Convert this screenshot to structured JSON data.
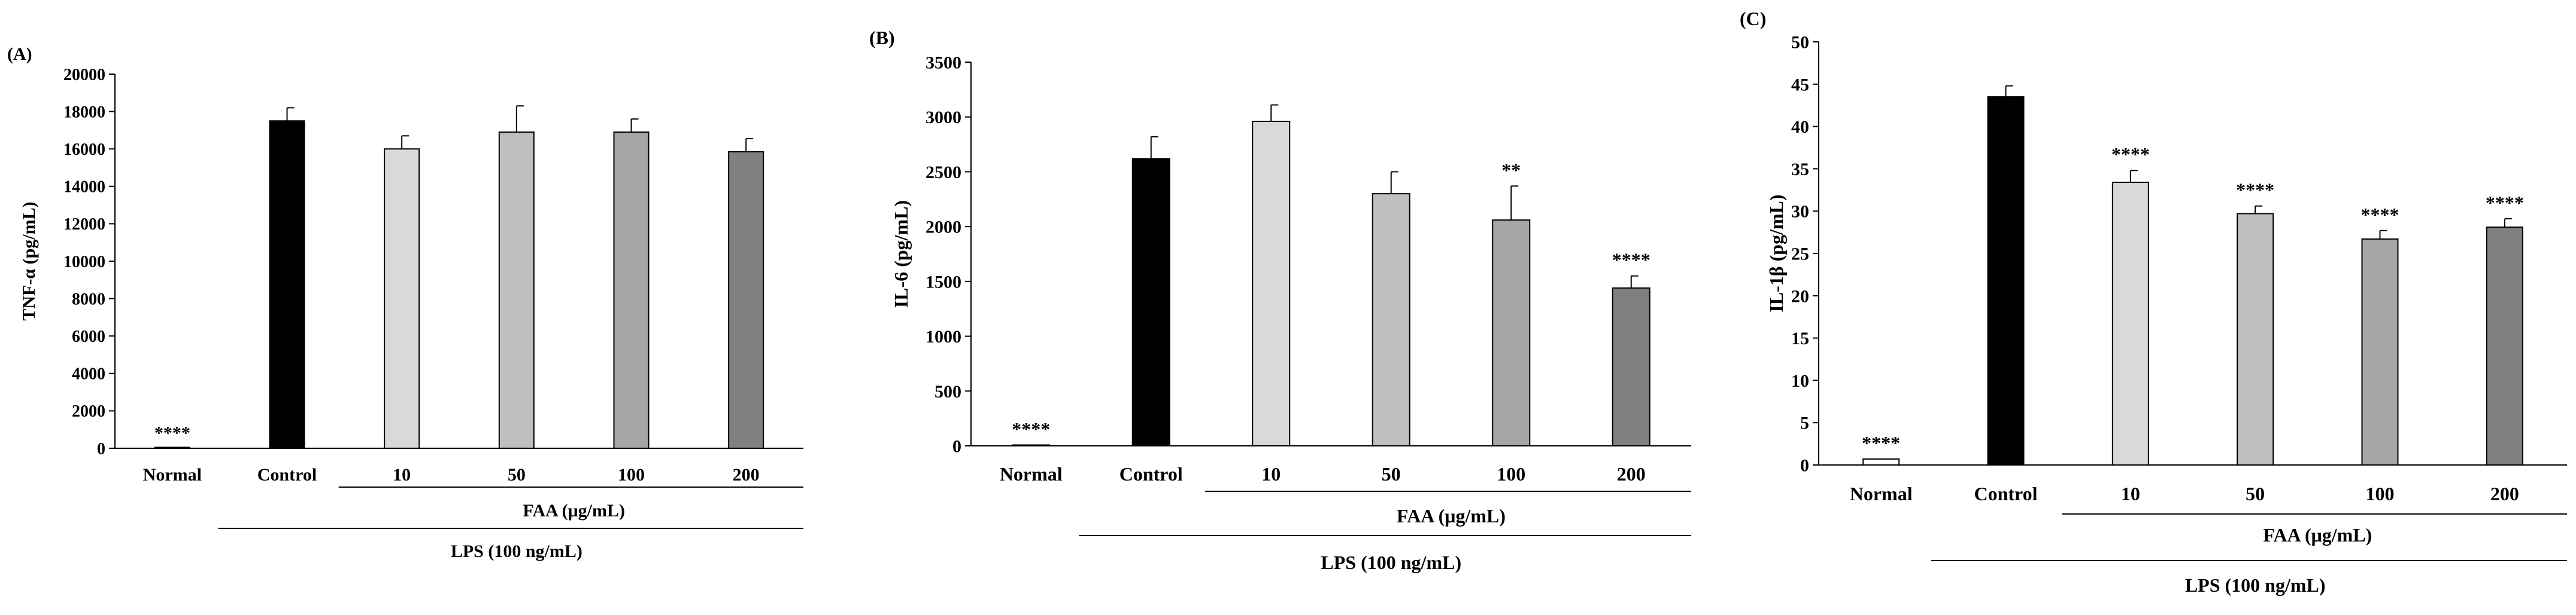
{
  "chart_data": [
    {
      "type": "bar",
      "panel_label": "(A)",
      "title": "",
      "ylabel": "TNF-α (pg/mL)",
      "ylim": [
        0,
        20000
      ],
      "ytick_step": 2000,
      "ytick_labels": [
        "0",
        "2000",
        "4000",
        "6000",
        "8000",
        "10000",
        "12000",
        "14000",
        "16000",
        "18000",
        "20000"
      ],
      "categories": [
        "Normal",
        "Control",
        "10",
        "50",
        "100",
        "200"
      ],
      "values": [
        0,
        17500,
        16000,
        16900,
        16900,
        15850
      ],
      "errors": [
        0,
        700,
        700,
        1400,
        700,
        700
      ],
      "significance": [
        "****",
        "",
        "",
        "",
        "",
        ""
      ],
      "bar_colors": [
        "#ffffff",
        "#000000",
        "#d9d9d9",
        "#bfbfbf",
        "#a6a6a6",
        "#808080"
      ],
      "group_labels": {
        "faa": "FAA (μg/mL)",
        "lps": "LPS (100 ng/mL)"
      }
    },
    {
      "type": "bar",
      "panel_label": "(B)",
      "title": "",
      "ylabel": "IL-6 (pg/mL)",
      "ylim": [
        0,
        3500
      ],
      "ytick_step": 500,
      "ytick_labels": [
        "0",
        "500",
        "1000",
        "1500",
        "2000",
        "2500",
        "3000",
        "3500"
      ],
      "categories": [
        "Normal",
        "Control",
        "10",
        "50",
        "100",
        "200"
      ],
      "values": [
        5,
        2620,
        2960,
        2300,
        2060,
        1440
      ],
      "errors": [
        0,
        200,
        150,
        200,
        310,
        110
      ],
      "significance": [
        "****",
        "",
        "",
        "",
        "**",
        "****"
      ],
      "bar_colors": [
        "#ffffff",
        "#000000",
        "#d9d9d9",
        "#bfbfbf",
        "#a6a6a6",
        "#808080"
      ],
      "group_labels": {
        "faa": "FAA (μg/mL)",
        "lps": "LPS (100 ng/mL)"
      }
    },
    {
      "type": "bar",
      "panel_label": "(C)",
      "title": "",
      "ylabel": "IL-1β (pg/mL)",
      "ylim": [
        0,
        50
      ],
      "ytick_step": 5,
      "ytick_labels": [
        "0",
        "5",
        "10",
        "15",
        "20",
        "25",
        "30",
        "35",
        "40",
        "45",
        "50"
      ],
      "categories": [
        "Normal",
        "Control",
        "10",
        "50",
        "100",
        "200"
      ],
      "values": [
        0.7,
        43.5,
        33.4,
        29.7,
        26.7,
        28.1
      ],
      "errors": [
        0,
        1.3,
        1.4,
        0.9,
        1.0,
        1.0
      ],
      "significance": [
        "****",
        "",
        "****",
        "****",
        "****",
        "****"
      ],
      "bar_colors": [
        "#ffffff",
        "#000000",
        "#d9d9d9",
        "#bfbfbf",
        "#a6a6a6",
        "#808080"
      ],
      "group_labels": {
        "faa": "FAA (μg/mL)",
        "lps": "LPS (100 ng/mL)"
      }
    }
  ]
}
